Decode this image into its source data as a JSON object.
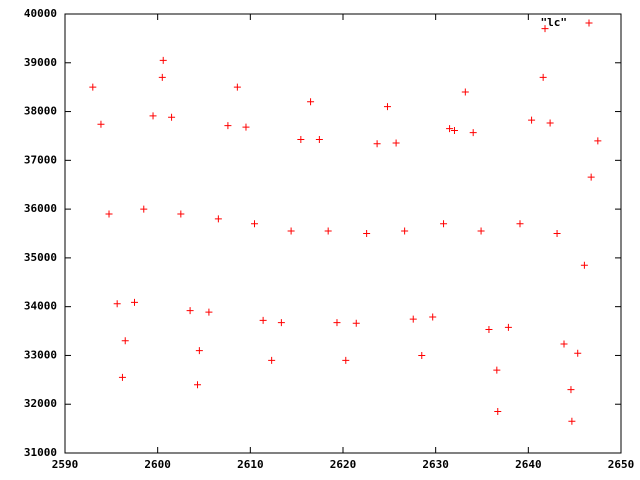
{
  "chart_data": {
    "type": "scatter",
    "series": [
      {
        "name": "\"lc\"",
        "color": "#ff0000",
        "x": [
          2593,
          2593.88,
          2594.75,
          2595.63,
          2596.5,
          2597.5,
          2598.5,
          2599.5,
          2600.5,
          2601.5,
          2602.5,
          2603.5,
          2604.5,
          2605.53,
          2606.55,
          2607.58,
          2608.6,
          2609.53,
          2610.45,
          2611.38,
          2612.3,
          2613.35,
          2614.4,
          2615.45,
          2616.5,
          2617.45,
          2618.4,
          2619.35,
          2620.3,
          2621.43,
          2622.55,
          2623.68,
          2624.8,
          2625.73,
          2626.65,
          2627.58,
          2628.5,
          2629.68,
          2630.85,
          2632.03,
          2633.2,
          2634.05,
          2634.9,
          2635.75,
          2636.6,
          2637.85,
          2639.1,
          2640.35,
          2641.6,
          2642.35,
          2643.1,
          2643.85,
          2644.6,
          2645.33,
          2646.05,
          2646.78,
          2647.5,
          2600.6,
          2641.8,
          2631.5,
          2596.2,
          2604.3,
          2636.7,
          2644.7
        ],
        "values": [
          38500,
          37741,
          35900,
          34059,
          33300,
          34088,
          36000,
          37912,
          38700,
          37882,
          35900,
          33918,
          33100,
          33888,
          35800,
          37712,
          38500,
          37682,
          35700,
          33718,
          32900,
          33674,
          35550,
          37426,
          38200,
          37426,
          35550,
          33674,
          32900,
          33659,
          35500,
          37341,
          38100,
          37355,
          35550,
          33745,
          33000,
          33788,
          35700,
          37612,
          38400,
          37568,
          35550,
          33532,
          32700,
          33576,
          35700,
          37824,
          38700,
          37766,
          35500,
          33234,
          32300,
          33045,
          34850,
          36655,
          37400,
          39050,
          39700,
          37650,
          32550,
          32400,
          31850,
          31650
        ]
      }
    ],
    "xlim": [
      2590,
      2650
    ],
    "xticks": [
      2590,
      2600,
      2610,
      2620,
      2630,
      2640,
      2650
    ],
    "ylim": [
      31000,
      40000
    ],
    "yticks": [
      31000,
      32000,
      33000,
      34000,
      35000,
      36000,
      37000,
      38000,
      39000,
      40000
    ],
    "legend": "upper right"
  }
}
